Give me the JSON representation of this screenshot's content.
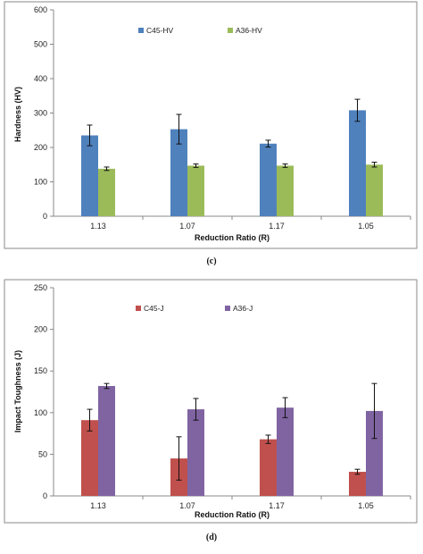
{
  "chart_data": [
    {
      "type": "bar",
      "caption": "(c)",
      "categories": [
        "1.13",
        "1.07",
        "1.17",
        "1.05"
      ],
      "xlabel": "Reduction Ratio (R)",
      "ylabel": "Hardness (HV)",
      "ylim": [
        0,
        600
      ],
      "yticks": [
        0,
        100,
        200,
        300,
        400,
        500,
        600
      ],
      "grid": false,
      "legend_position": "top",
      "series": [
        {
          "name": "C45-HV",
          "color": "#4f81bd",
          "values": [
            235,
            253,
            211,
            308
          ],
          "errors": [
            30,
            43,
            10,
            32
          ]
        },
        {
          "name": "A36-HV",
          "color": "#9bbb59",
          "values": [
            138,
            147,
            147,
            150
          ],
          "errors": [
            5,
            5,
            5,
            7
          ]
        }
      ]
    },
    {
      "type": "bar",
      "caption": "(d)",
      "categories": [
        "1.13",
        "1.07",
        "1.17",
        "1.05"
      ],
      "xlabel": "Reduction Ratio (R)",
      "ylabel": "Impact Toughness (J)",
      "ylim": [
        0,
        250
      ],
      "yticks": [
        0,
        50,
        100,
        150,
        200,
        250
      ],
      "grid": false,
      "legend_position": "top",
      "series": [
        {
          "name": "C45-J",
          "color": "#c0504d",
          "values": [
            91,
            45,
            68,
            29
          ],
          "errors": [
            13,
            26,
            5,
            3
          ]
        },
        {
          "name": "A36-J",
          "color": "#8064a2",
          "values": [
            132,
            104,
            106,
            102
          ],
          "errors": [
            3,
            13,
            12,
            33
          ]
        }
      ]
    }
  ]
}
